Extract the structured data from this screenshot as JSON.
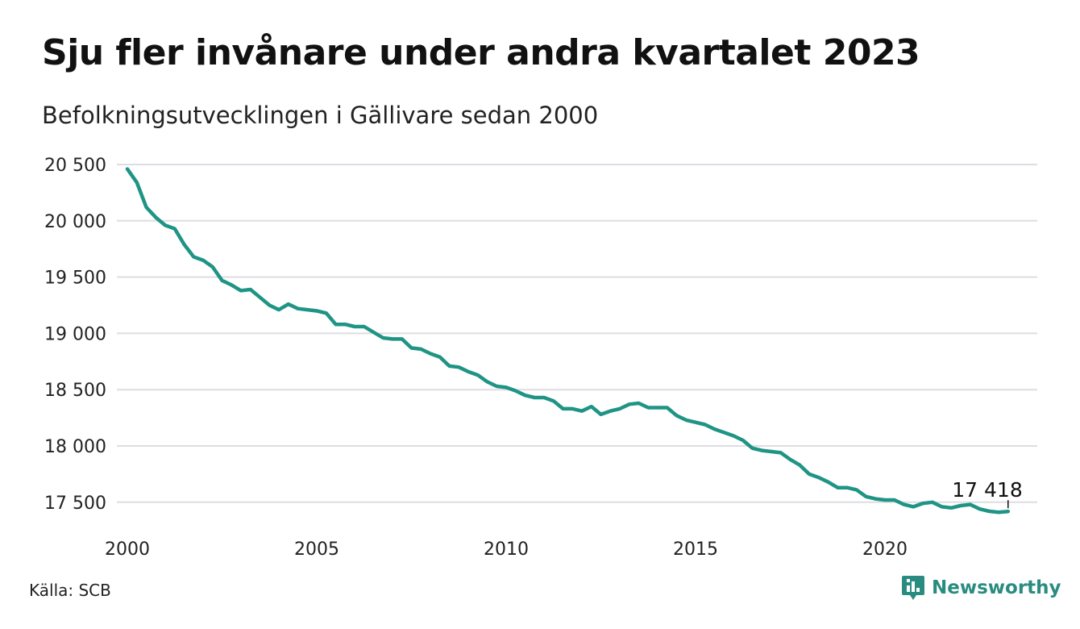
{
  "header": {
    "title": "Sju fler invånare under andra kvartalet 2023",
    "subtitle": "Befolkningsutvecklingen i Gällivare sedan 2000"
  },
  "footer": {
    "source": "Källa: SCB",
    "brand": "Newsworthy",
    "brand_icon": "newsworthy-logo-icon"
  },
  "colors": {
    "line": "#1f9485",
    "grid": "#dddde3",
    "brand": "#2a8c80"
  },
  "chart_data": {
    "type": "line",
    "title": "Sju fler invånare under andra kvartalet 2023",
    "subtitle": "Befolkningsutvecklingen i Gällivare sedan 2000",
    "xlabel": "",
    "ylabel": "",
    "ylim": [
      17420,
      20500
    ],
    "xlim": [
      2000,
      2023.5
    ],
    "grid": true,
    "yticks": [
      {
        "value": 20500,
        "label": "20 500"
      },
      {
        "value": 20000,
        "label": "20 000"
      },
      {
        "value": 19500,
        "label": "19 500"
      },
      {
        "value": 19000,
        "label": "19 000"
      },
      {
        "value": 18500,
        "label": "18 500"
      },
      {
        "value": 18000,
        "label": "18 000"
      },
      {
        "value": 17500,
        "label": "17 500"
      }
    ],
    "xticks": [
      {
        "value": 2000,
        "label": "2000"
      },
      {
        "value": 2005,
        "label": "2005"
      },
      {
        "value": 2010,
        "label": "2010"
      },
      {
        "value": 2015,
        "label": "2015"
      },
      {
        "value": 2020,
        "label": "2020"
      }
    ],
    "end_label": "17 418",
    "series": [
      {
        "x": [
          "2000K1",
          "2000K2",
          "2000K3",
          "2000K4",
          "2001K1",
          "2001K2",
          "2001K3",
          "2001K4",
          "2002K1",
          "2002K2",
          "2002K3",
          "2002K4",
          "2003K1",
          "2003K2",
          "2003K3",
          "2003K4",
          "2004K1",
          "2004K2",
          "2004K3",
          "2004K4",
          "2005K1",
          "2005K2",
          "2005K3",
          "2005K4",
          "2006K1",
          "2006K2",
          "2006K3",
          "2006K4",
          "2007K1",
          "2007K2",
          "2007K3",
          "2007K4",
          "2008K1",
          "2008K2",
          "2008K3",
          "2008K4",
          "2009K1",
          "2009K2",
          "2009K3",
          "2009K4",
          "2010K1",
          "2010K2",
          "2010K3",
          "2010K4",
          "2011K1",
          "2011K2",
          "2011K3",
          "2011K4",
          "2012K1",
          "2012K2",
          "2012K3",
          "2012K4",
          "2013K1",
          "2013K2",
          "2013K3",
          "2013K4",
          "2014K1",
          "2014K2",
          "2014K3",
          "2014K4",
          "2015K1",
          "2015K2",
          "2015K3",
          "2015K4",
          "2016K1",
          "2016K2",
          "2016K3",
          "2016K4",
          "2017K1",
          "2017K2",
          "2017K3",
          "2017K4",
          "2018K1",
          "2018K2",
          "2018K3",
          "2018K4",
          "2019K1",
          "2019K2",
          "2019K3",
          "2019K4",
          "2020K1",
          "2020K2",
          "2020K3",
          "2020K4",
          "2021K1",
          "2021K2",
          "2021K3",
          "2021K4",
          "2022K1",
          "2022K2",
          "2022K3",
          "2022K4",
          "2023K1",
          "2023K2"
        ],
        "values": [
          20460,
          20340,
          20120,
          20030,
          19960,
          19930,
          19790,
          19680,
          19650,
          19590,
          19470,
          19430,
          19380,
          19390,
          19320,
          19250,
          19210,
          19260,
          19220,
          19210,
          19200,
          19180,
          19080,
          19080,
          19060,
          19060,
          19010,
          18960,
          18950,
          18950,
          18870,
          18860,
          18820,
          18790,
          18710,
          18700,
          18660,
          18630,
          18570,
          18530,
          18520,
          18490,
          18450,
          18430,
          18430,
          18400,
          18330,
          18330,
          18310,
          18350,
          18280,
          18310,
          18330,
          18370,
          18380,
          18340,
          18340,
          18340,
          18270,
          18230,
          18210,
          18190,
          18150,
          18120,
          18090,
          18050,
          17980,
          17960,
          17950,
          17940,
          17880,
          17830,
          17750,
          17720,
          17680,
          17630,
          17630,
          17610,
          17550,
          17530,
          17520,
          17520,
          17480,
          17460,
          17490,
          17500,
          17460,
          17450,
          17470,
          17480,
          17440,
          17420,
          17411,
          17418
        ]
      }
    ]
  }
}
